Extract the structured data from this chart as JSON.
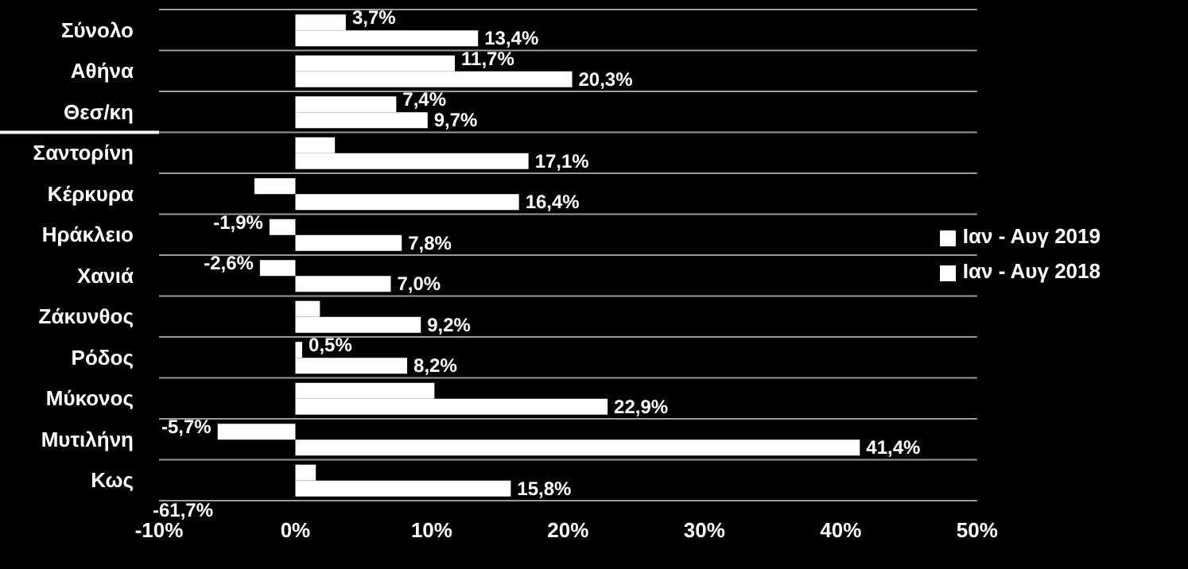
{
  "chart_data": {
    "type": "bar",
    "orientation": "horizontal",
    "categories": [
      "Σύνολο",
      "Αθήνα ",
      "Θεσ/κη",
      "Σαντορίνη",
      "Κέρκυρα",
      "Ηράκλειο",
      "Χανιά",
      "Ζάκυνθος",
      "Ρόδος",
      "Μύκονος",
      "Μυτιλήνη",
      "Κως"
    ],
    "series": [
      {
        "name": "Ιαν - Αυγ 2019",
        "color": "#ffffff",
        "values": [
          3.7,
          11.7,
          7.4,
          2.9,
          -3.0,
          -1.9,
          -2.6,
          1.8,
          0.5,
          10.2,
          -5.7,
          1.5
        ],
        "value_labels": [
          "3,7%",
          "11,7%",
          "7,4%",
          null,
          null,
          "-1,9%",
          "-2,6%",
          null,
          "0,5%",
          null,
          "-5,7%",
          null
        ]
      },
      {
        "name": "Ιαν - Αυγ 2018",
        "color": "#ffffff",
        "values": [
          13.4,
          20.3,
          9.7,
          17.1,
          16.4,
          7.8,
          7.0,
          9.2,
          8.2,
          22.9,
          41.4,
          15.8
        ],
        "value_labels": [
          "13,4%",
          "20,3%",
          "9,7%",
          "17,1%",
          "16,4%",
          "7,8%",
          "7,0%",
          "9,2%",
          "8,2%",
          "22,9%",
          "41,4%",
          "15,8%"
        ]
      }
    ],
    "xlim": [
      -10,
      50
    ],
    "xticks": [
      {
        "value": -10,
        "label": "-10%"
      },
      {
        "value": 0,
        "label": "0%"
      },
      {
        "value": 10,
        "label": "10%"
      },
      {
        "value": 20,
        "label": "20%"
      },
      {
        "value": 30,
        "label": "30%"
      },
      {
        "value": 40,
        "label": "40%"
      },
      {
        "value": 50,
        "label": "50%"
      }
    ],
    "grid": "y",
    "legend": "right",
    "annotations": [
      "-61,7%"
    ]
  }
}
